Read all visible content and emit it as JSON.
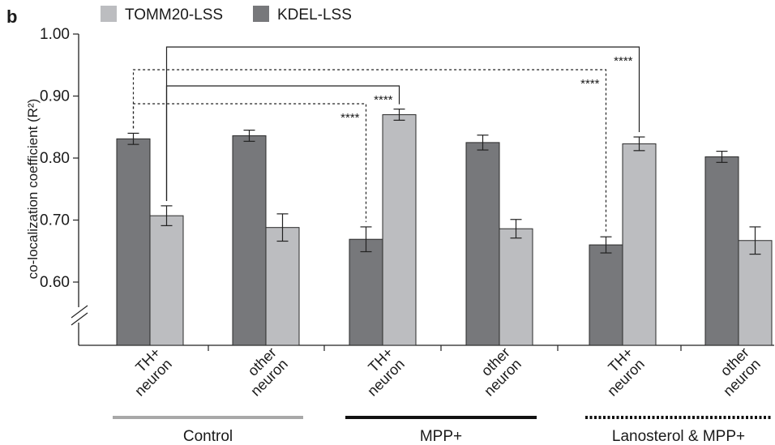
{
  "panel_label": "b",
  "chart_data": {
    "type": "bar",
    "ylabel": "co-localization coefficient (R²)",
    "ylim": [
      0.6,
      1.0
    ],
    "y_ticks": [
      "0.60",
      "0.70",
      "0.80",
      "0.90",
      "1.00"
    ],
    "axis_break": true,
    "legend": {
      "placement": "top-left"
    },
    "series": [
      {
        "name": "TOMM20-LSS",
        "color": "#bcbdc0"
      },
      {
        "name": "KDEL-LSS",
        "color": "#77787b"
      }
    ],
    "categories": [
      {
        "line1": "TH+",
        "line2": "neuron"
      },
      {
        "line1": "other",
        "line2": "neuron"
      },
      {
        "line1": "TH+",
        "line2": "neuron"
      },
      {
        "line1": "other",
        "line2": "neuron"
      },
      {
        "line1": "TH+",
        "line2": "neuron"
      },
      {
        "line1": "other",
        "line2": "neuron"
      }
    ],
    "groups": [
      {
        "label": "Control",
        "categories": [
          0,
          1
        ],
        "line_color": "#a8a8a8",
        "line_style": "solid"
      },
      {
        "label": "MPP+",
        "categories": [
          2,
          3
        ],
        "line_color": "#111111",
        "line_style": "solid"
      },
      {
        "label": "Lanosterol & MPP+",
        "categories": [
          4,
          5
        ],
        "line_color": "#111111",
        "line_style": "dotted"
      }
    ],
    "bars": [
      {
        "category": 0,
        "series": "KDEL-LSS",
        "value": 0.831,
        "err": 0.009
      },
      {
        "category": 0,
        "series": "TOMM20-LSS",
        "value": 0.707,
        "err": 0.016
      },
      {
        "category": 1,
        "series": "KDEL-LSS",
        "value": 0.836,
        "err": 0.009
      },
      {
        "category": 1,
        "series": "TOMM20-LSS",
        "value": 0.688,
        "err": 0.022
      },
      {
        "category": 2,
        "series": "KDEL-LSS",
        "value": 0.669,
        "err": 0.02
      },
      {
        "category": 2,
        "series": "TOMM20-LSS",
        "value": 0.87,
        "err": 0.009
      },
      {
        "category": 3,
        "series": "KDEL-LSS",
        "value": 0.825,
        "err": 0.012
      },
      {
        "category": 3,
        "series": "TOMM20-LSS",
        "value": 0.686,
        "err": 0.015
      },
      {
        "category": 4,
        "series": "KDEL-LSS",
        "value": 0.66,
        "err": 0.013
      },
      {
        "category": 4,
        "series": "TOMM20-LSS",
        "value": 0.823,
        "err": 0.011
      },
      {
        "category": 5,
        "series": "KDEL-LSS",
        "value": 0.802,
        "err": 0.009
      },
      {
        "category": 5,
        "series": "TOMM20-LSS",
        "value": 0.667,
        "err": 0.022
      }
    ],
    "significance": [
      {
        "from_bar": 0,
        "to_bar": 4,
        "style": "dashed",
        "label": "****"
      },
      {
        "from_bar": 0,
        "to_bar": 8,
        "style": "dashed",
        "label": "****"
      },
      {
        "from_bar": 1,
        "to_bar": 5,
        "style": "solid",
        "label": "****"
      },
      {
        "from_bar": 1,
        "to_bar": 9,
        "style": "solid",
        "label": "****"
      }
    ]
  }
}
